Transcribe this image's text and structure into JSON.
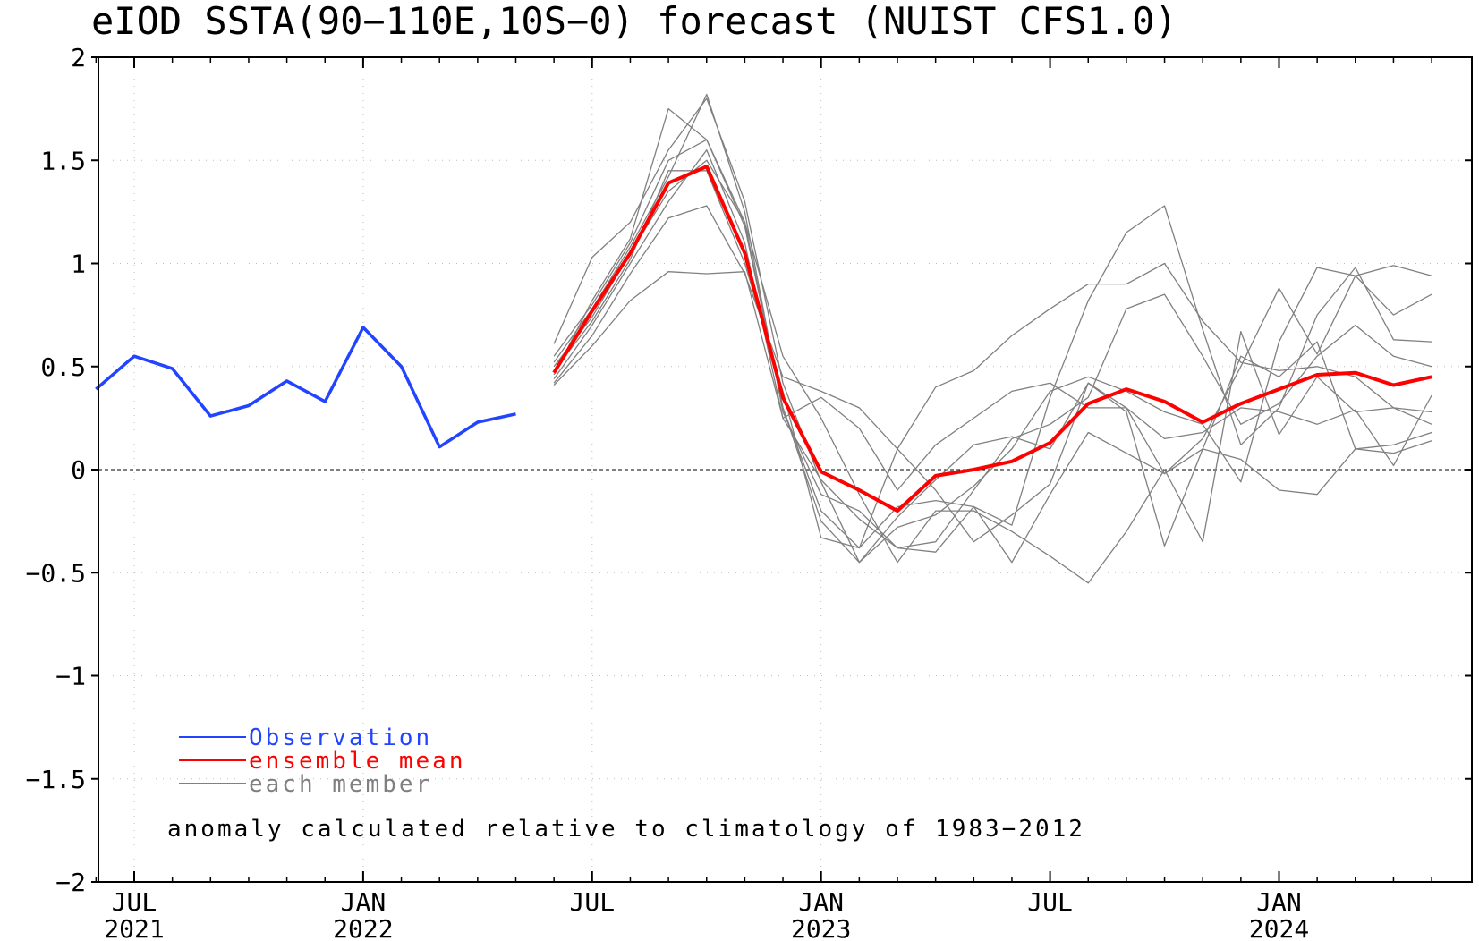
{
  "chart_data": {
    "type": "line",
    "title": "eIOD SSTA(90-110E,10S-0) forecast (NUIST CFS1.0)",
    "ylim": [
      -2,
      2
    ],
    "yticks": [
      {
        "value": 2,
        "label": "2"
      },
      {
        "value": 1.5,
        "label": "1.5"
      },
      {
        "value": 1,
        "label": "1"
      },
      {
        "value": 0.5,
        "label": "0.5"
      },
      {
        "value": 0,
        "label": "0"
      },
      {
        "value": -0.5,
        "label": "-0.5"
      },
      {
        "value": -1,
        "label": "-1"
      },
      {
        "value": -1.5,
        "label": "-1.5"
      },
      {
        "value": -2,
        "label": "-2"
      }
    ],
    "xlim": [
      "2021-06",
      "2024-05"
    ],
    "xticks": [
      {
        "x": "2021-07",
        "label": "JUL",
        "year": "2021"
      },
      {
        "x": "2022-01",
        "label": "JAN",
        "year": "2022"
      },
      {
        "x": "2022-07",
        "label": "JUL",
        "year": ""
      },
      {
        "x": "2023-01",
        "label": "JAN",
        "year": "2023"
      },
      {
        "x": "2023-07",
        "label": "JUL",
        "year": ""
      },
      {
        "x": "2024-01",
        "label": "JAN",
        "year": "2024"
      }
    ],
    "zero_line": true,
    "legend": {
      "placement": "bottom-left",
      "entries": [
        {
          "label": "Observation",
          "color": "#2244ff"
        },
        {
          "label": "ensemble mean",
          "color": "#ff0000"
        },
        {
          "label": "each member",
          "color": "#808080"
        }
      ]
    },
    "annotation": "anomaly calculated relative to climatology of 1983-2012",
    "series": [
      {
        "name": "Observation",
        "color": "#2244ff",
        "x": [
          "2021-06",
          "2021-07",
          "2021-08",
          "2021-09",
          "2021-10",
          "2021-11",
          "2021-12",
          "2022-01",
          "2022-02",
          "2022-03",
          "2022-04",
          "2022-05"
        ],
        "values": [
          0.39,
          0.55,
          0.49,
          0.26,
          0.31,
          0.43,
          0.33,
          0.69,
          0.5,
          0.11,
          0.23,
          0.27
        ]
      },
      {
        "name": "ensemble mean",
        "color": "#ff0000",
        "x": [
          "2022-06",
          "2022-07",
          "2022-08",
          "2022-09",
          "2022-10",
          "2022-11",
          "2022-12",
          "2023-01",
          "2023-02",
          "2023-03",
          "2023-04",
          "2023-05",
          "2023-06",
          "2023-07",
          "2023-08",
          "2023-09",
          "2023-10",
          "2023-11",
          "2023-12",
          "2024-01",
          "2024-02",
          "2024-03",
          "2024-04",
          "2024-05"
        ],
        "values": [
          0.47,
          0.77,
          1.05,
          1.39,
          1.47,
          1.05,
          0.35,
          -0.01,
          -0.1,
          -0.2,
          -0.03,
          0.0,
          0.04,
          0.13,
          0.32,
          0.39,
          0.33,
          0.23,
          0.32,
          0.39,
          0.46,
          0.47,
          0.41,
          0.45
        ]
      }
    ],
    "members": {
      "color": "#808080",
      "x": [
        "2022-06",
        "2022-07",
        "2022-08",
        "2022-09",
        "2022-10",
        "2022-11",
        "2022-12",
        "2023-01",
        "2023-02",
        "2023-03",
        "2023-04",
        "2023-05",
        "2023-06",
        "2023-07",
        "2023-08",
        "2023-09",
        "2023-10",
        "2023-11",
        "2023-12",
        "2024-01",
        "2024-02",
        "2024-03",
        "2024-04",
        "2024-05"
      ],
      "values": [
        [
          0.61,
          1.03,
          1.2,
          1.55,
          1.8,
          1.3,
          0.42,
          -0.06,
          -0.45,
          -0.23,
          -0.05,
          0.12,
          0.16,
          0.1,
          0.42,
          0.3,
          -0.02,
          0.15,
          0.5,
          0.88,
          0.56,
          0.94,
          0.75,
          0.85
        ],
        [
          0.52,
          0.78,
          1.08,
          1.42,
          1.82,
          1.25,
          0.28,
          -0.12,
          -0.2,
          -0.38,
          -0.4,
          -0.18,
          -0.27,
          0.35,
          0.82,
          1.15,
          1.28,
          0.68,
          0.12,
          0.3,
          0.75,
          0.98,
          0.63,
          0.62
        ],
        [
          0.46,
          0.82,
          1.12,
          1.75,
          1.6,
          1.18,
          0.3,
          -0.25,
          -0.45,
          -0.28,
          -0.22,
          -0.08,
          0.1,
          0.38,
          0.45,
          0.38,
          0.28,
          0.22,
          -0.06,
          0.62,
          0.98,
          0.94,
          0.99,
          0.94
        ],
        [
          0.44,
          0.7,
          1.0,
          1.3,
          1.55,
          1.1,
          0.25,
          -0.05,
          -0.24,
          -0.38,
          -0.35,
          -0.1,
          0.15,
          0.22,
          0.35,
          0.78,
          0.85,
          0.55,
          0.22,
          0.32,
          0.55,
          0.7,
          0.55,
          0.5
        ],
        [
          0.42,
          0.65,
          0.95,
          1.22,
          1.28,
          0.95,
          0.45,
          0.38,
          0.3,
          0.1,
          0.4,
          0.48,
          0.65,
          0.78,
          0.9,
          0.9,
          1.0,
          0.72,
          0.52,
          0.48,
          0.5,
          0.45,
          0.3,
          0.28
        ],
        [
          0.5,
          0.74,
          1.05,
          1.35,
          1.5,
          1.2,
          0.55,
          0.25,
          -0.12,
          -0.45,
          -0.2,
          -0.2,
          -0.3,
          -0.42,
          -0.55,
          -0.3,
          0.0,
          -0.35,
          0.67,
          0.17,
          0.45,
          0.28,
          0.3,
          0.22
        ],
        [
          0.48,
          0.72,
          1.02,
          1.45,
          1.45,
          1.0,
          0.38,
          -0.33,
          -0.38,
          -0.18,
          -0.15,
          -0.18,
          -0.45,
          -0.12,
          0.18,
          0.08,
          -0.02,
          0.1,
          0.05,
          -0.1,
          -0.12,
          0.1,
          0.12,
          0.18
        ],
        [
          0.41,
          0.6,
          0.82,
          0.96,
          0.95,
          0.96,
          0.25,
          0.35,
          0.2,
          -0.1,
          0.12,
          0.25,
          0.38,
          0.42,
          0.3,
          0.3,
          0.15,
          0.18,
          0.3,
          0.28,
          0.22,
          0.29,
          0.02,
          0.36
        ],
        [
          0.55,
          0.8,
          1.1,
          1.5,
          1.6,
          1.2,
          0.3,
          -0.2,
          -0.38,
          0.1,
          -0.1,
          -0.35,
          -0.22,
          -0.07,
          0.42,
          0.28,
          -0.37,
          0.1,
          0.55,
          0.45,
          0.62,
          0.1,
          0.08,
          0.14
        ]
      ]
    }
  }
}
